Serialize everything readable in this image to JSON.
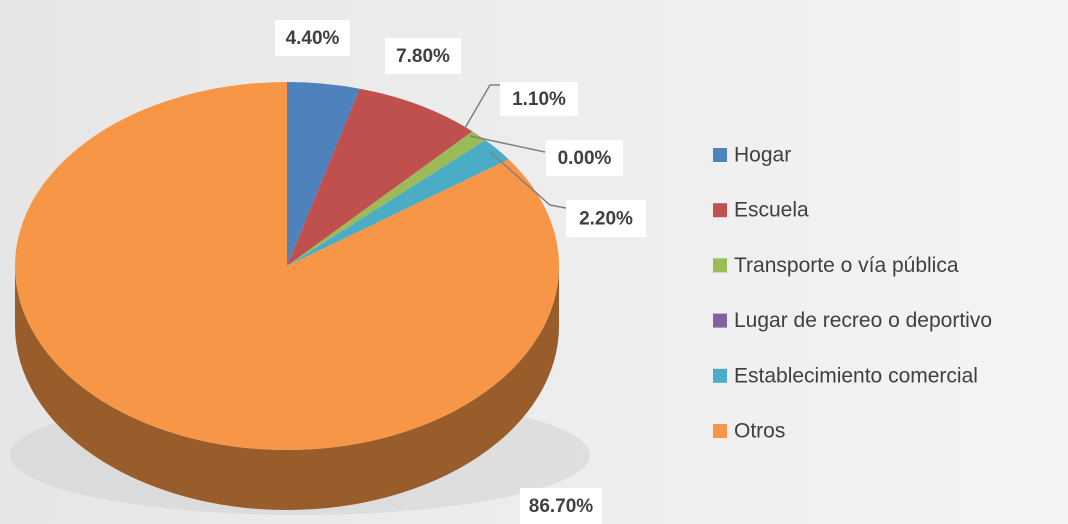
{
  "chart_data": {
    "type": "pie",
    "categories": [
      "Hogar",
      "Escuela",
      "Transporte o vía pública",
      "Lugar de recreo o deportivo",
      "Establecimiento comercial",
      "Otros"
    ],
    "values": [
      4.4,
      7.8,
      1.1,
      0.0,
      2.2,
      86.7
    ],
    "value_labels": [
      "4.40%",
      "7.80%",
      "1.10%",
      "0.00%",
      "2.20%",
      "86.70%"
    ],
    "colors": [
      "#4f81bd",
      "#c0504d",
      "#9bbb59",
      "#8064a2",
      "#4bacc6",
      "#f79646"
    ],
    "legend": "right"
  }
}
